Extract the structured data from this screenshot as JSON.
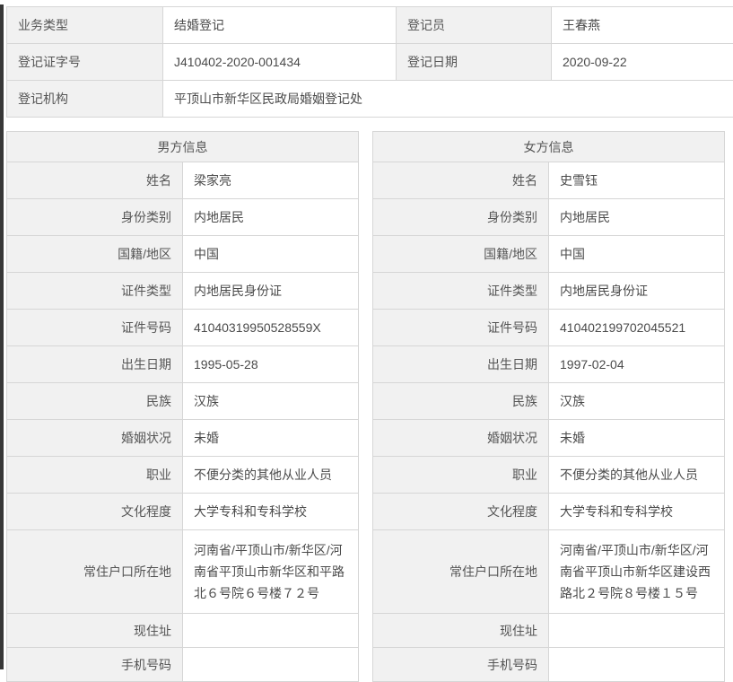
{
  "registration": {
    "rows": [
      {
        "label": "业务类型",
        "value": "结婚登记",
        "label2": "登记员",
        "value2": "王春燕"
      },
      {
        "label": "登记证字号",
        "value": "J410402-2020-001434",
        "label2": "登记日期",
        "value2": "2020-09-22"
      },
      {
        "label": "登记机构",
        "value": "平顶山市新华区民政局婚姻登记处"
      }
    ]
  },
  "male": {
    "title": "男方信息",
    "fields": [
      {
        "label": "姓名",
        "value": "梁家亮"
      },
      {
        "label": "身份类别",
        "value": "内地居民"
      },
      {
        "label": "国籍/地区",
        "value": "中国"
      },
      {
        "label": "证件类型",
        "value": "内地居民身份证"
      },
      {
        "label": "证件号码",
        "value": "41040319950528559X"
      },
      {
        "label": "出生日期",
        "value": "1995-05-28"
      },
      {
        "label": "民族",
        "value": "汉族"
      },
      {
        "label": "婚姻状况",
        "value": "未婚"
      },
      {
        "label": "职业",
        "value": "不便分类的其他从业人员"
      },
      {
        "label": "文化程度",
        "value": "大学专科和专科学校"
      },
      {
        "label": "常住户口所在地",
        "value": "河南省/平顶山市/新华区/河南省平顶山市新华区和平路北６号院６号楼７２号"
      },
      {
        "label": "现住址",
        "value": ""
      },
      {
        "label": "手机号码",
        "value": ""
      }
    ]
  },
  "female": {
    "title": "女方信息",
    "fields": [
      {
        "label": "姓名",
        "value": "史雪钰"
      },
      {
        "label": "身份类别",
        "value": "内地居民"
      },
      {
        "label": "国籍/地区",
        "value": "中国"
      },
      {
        "label": "证件类型",
        "value": "内地居民身份证"
      },
      {
        "label": "证件号码",
        "value": "410402199702045521"
      },
      {
        "label": "出生日期",
        "value": "1997-02-04"
      },
      {
        "label": "民族",
        "value": "汉族"
      },
      {
        "label": "婚姻状况",
        "value": "未婚"
      },
      {
        "label": "职业",
        "value": "不便分类的其他从业人员"
      },
      {
        "label": "文化程度",
        "value": "大学专科和专科学校"
      },
      {
        "label": "常住户口所在地",
        "value": "河南省/平顶山市/新华区/河南省平顶山市新华区建设西路北２号院８号楼１５号"
      },
      {
        "label": "现住址",
        "value": ""
      },
      {
        "label": "手机号码",
        "value": ""
      }
    ]
  },
  "colors": {
    "label_bg": "#f1f1f1",
    "border": "#d6d6d6",
    "text": "#4f4f4f",
    "left_strip": "#383838"
  }
}
